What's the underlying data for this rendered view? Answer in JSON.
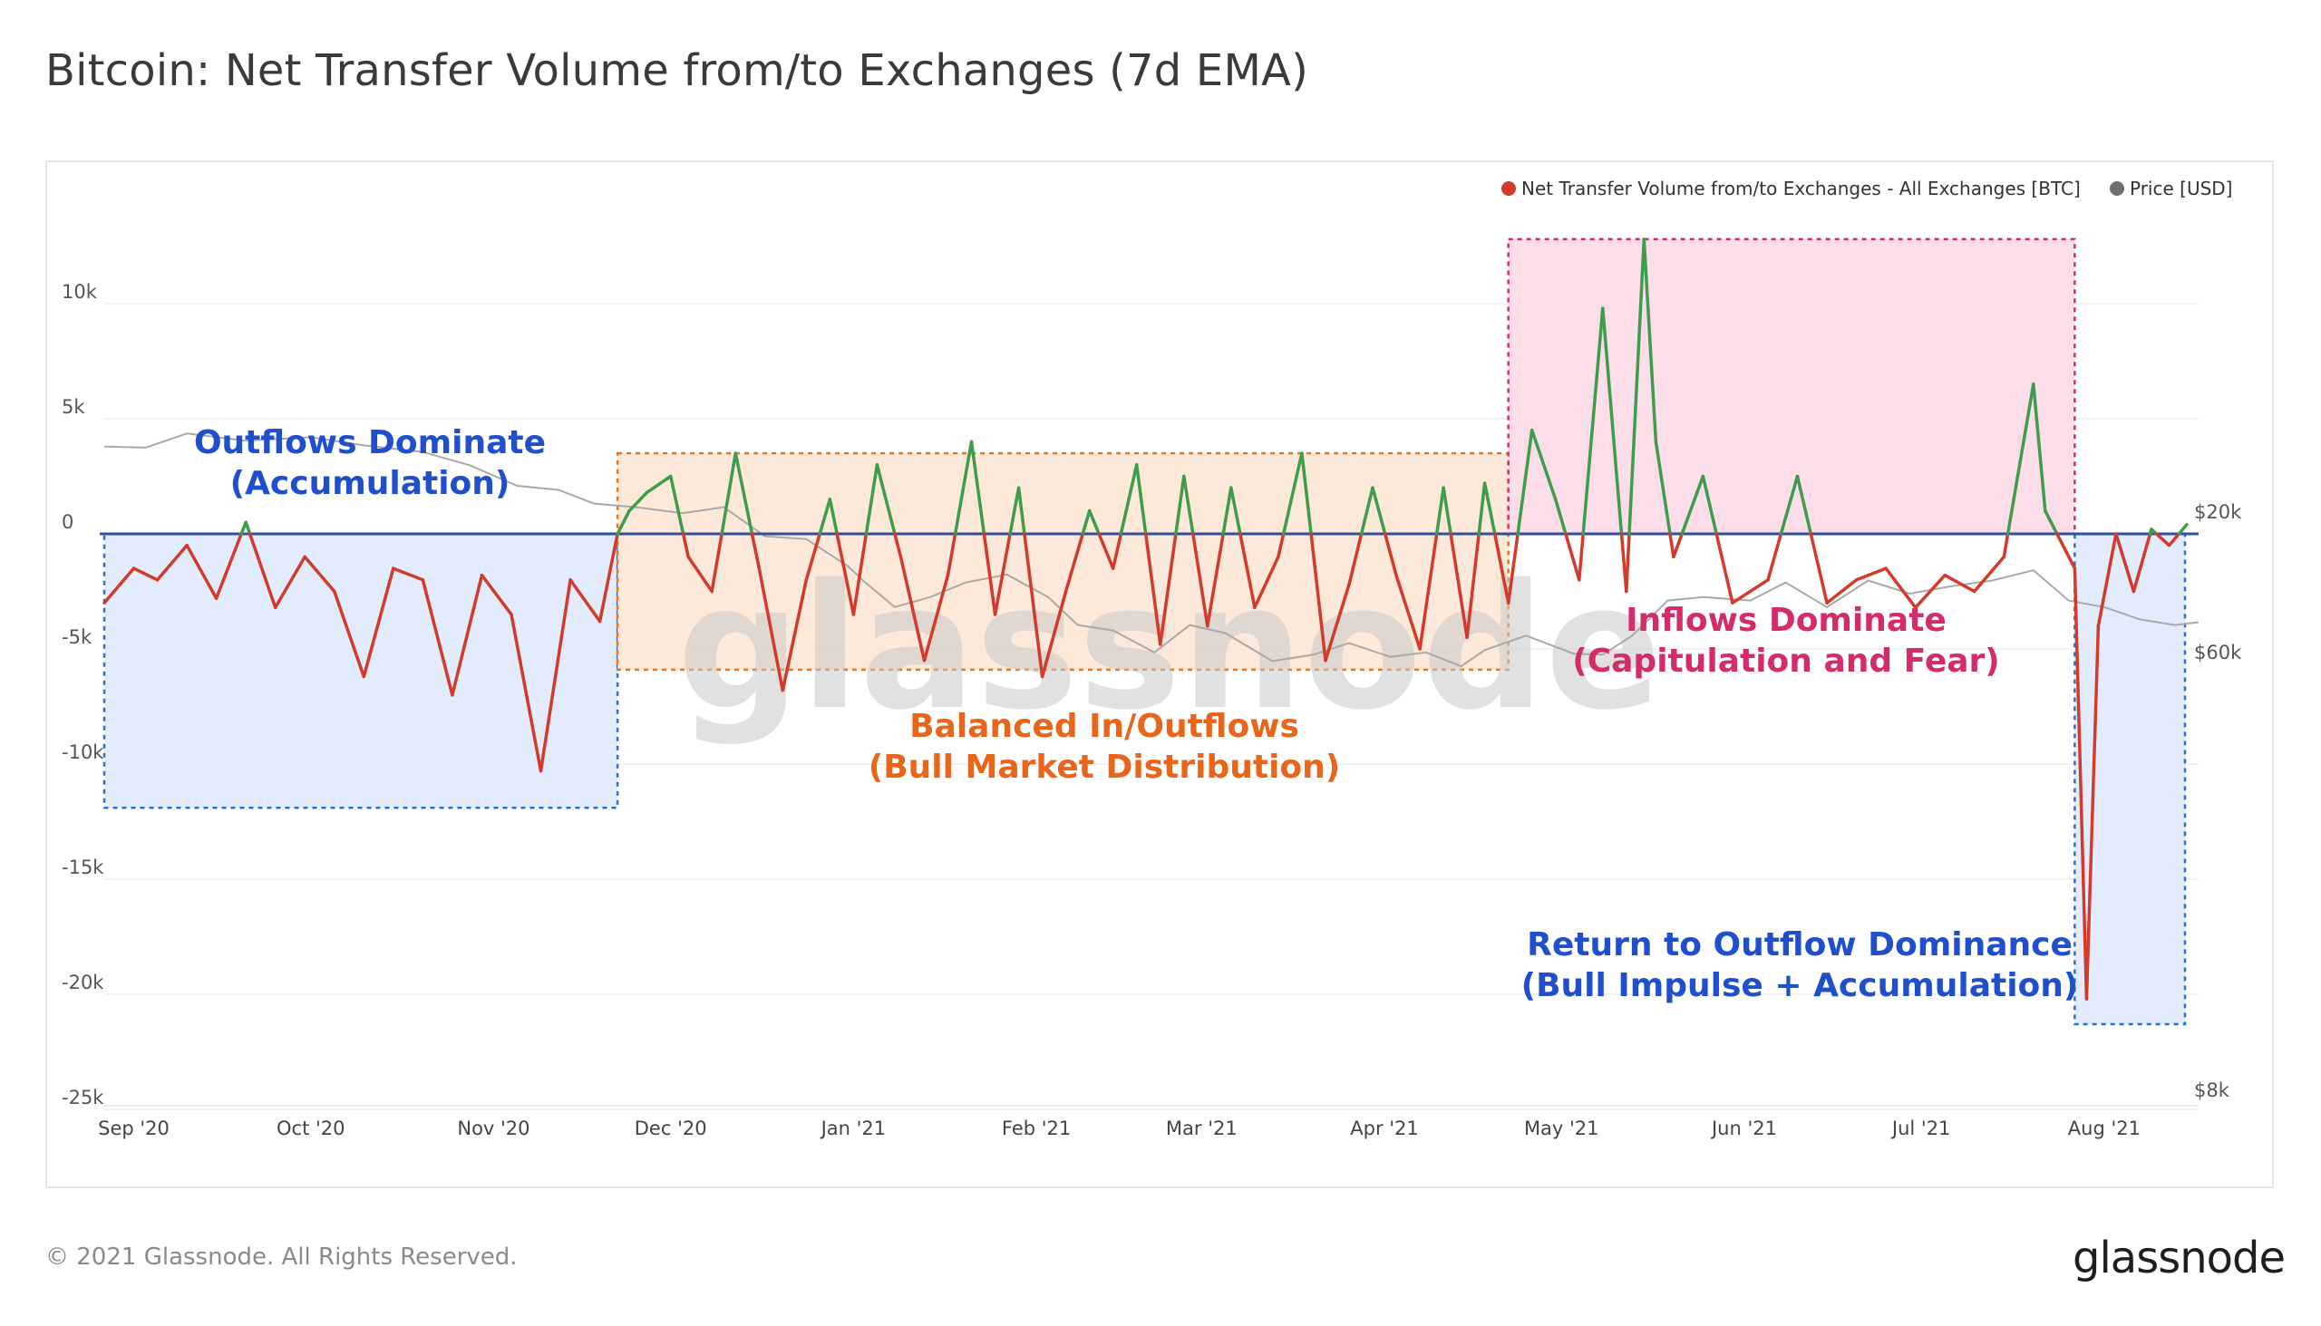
{
  "title": "Bitcoin: Net Transfer Volume from/to Exchanges (7d EMA)",
  "footer": "© 2021 Glassnode. All Rights Reserved.",
  "brand": "glassnode",
  "watermark": "glassnode",
  "colors": {
    "inflow": "#d33a2c",
    "outflow": "#3e9c4a",
    "price": "#a9a9a9",
    "zero_line": "#2f4fa0",
    "zone_outflow": "#2e6fd6",
    "zone_balanced": "#e8741c",
    "zone_inflow": "#d42c6a"
  },
  "legend": [
    {
      "label": "Net Transfer Volume from/to Exchanges - All Exchanges [BTC]",
      "color": "#d33a2c"
    },
    {
      "label": "Price [USD]",
      "color": "#6f6f6f"
    }
  ],
  "annotations": [
    {
      "id": "accumulation",
      "lines": [
        "Outflows Dominate",
        "(Accumulation)"
      ],
      "color": "#1f4fcc"
    },
    {
      "id": "balanced",
      "lines": [
        "Balanced In/Outflows",
        "(Bull Market Distribution)"
      ],
      "color": "#e8651a"
    },
    {
      "id": "inflows",
      "lines": [
        "Inflows Dominate",
        "(Capitulation and Fear)"
      ],
      "color": "#d42c6a"
    },
    {
      "id": "return",
      "lines": [
        "Return to Outflow Dominance",
        "(Bull Impulse + Accumulation)"
      ],
      "color": "#1f4fcc"
    }
  ],
  "chart_data": {
    "type": "line",
    "x_ticks": [
      "Sep '20",
      "Oct '20",
      "Nov '20",
      "Dec '20",
      "Jan '21",
      "Feb '21",
      "Mar '21",
      "Apr '21",
      "May '21",
      "Jun '21",
      "Jul '21",
      "Aug '21"
    ],
    "y_left": {
      "ticks": [
        "10k",
        "5k",
        "0",
        "-5k",
        "-10k",
        "-15k",
        "-20k",
        "-25k"
      ],
      "range": [
        -25000,
        13500
      ],
      "unit": "BTC"
    },
    "y_right": {
      "ticks": [
        "$60k",
        "$20k",
        "$8k"
      ],
      "scale": "log",
      "range": [
        8000,
        75000
      ],
      "unit": "USD"
    },
    "series": [
      {
        "name": "Net Transfer Volume from/to Exchanges - All Exchanges [BTC]",
        "x": [
          "2020-08-27",
          "2020-09-01",
          "2020-09-05",
          "2020-09-10",
          "2020-09-15",
          "2020-09-20",
          "2020-09-25",
          "2020-09-30",
          "2020-10-05",
          "2020-10-10",
          "2020-10-15",
          "2020-10-20",
          "2020-10-25",
          "2020-10-30",
          "2020-11-04",
          "2020-11-09",
          "2020-11-14",
          "2020-11-19",
          "2020-11-22",
          "2020-11-24",
          "2020-11-27",
          "2020-12-01",
          "2020-12-04",
          "2020-12-08",
          "2020-12-12",
          "2020-12-16",
          "2020-12-20",
          "2020-12-24",
          "2020-12-28",
          "2021-01-01",
          "2021-01-05",
          "2021-01-09",
          "2021-01-13",
          "2021-01-17",
          "2021-01-21",
          "2021-01-25",
          "2021-01-29",
          "2021-02-02",
          "2021-02-06",
          "2021-02-10",
          "2021-02-14",
          "2021-02-18",
          "2021-02-22",
          "2021-02-26",
          "2021-03-02",
          "2021-03-06",
          "2021-03-10",
          "2021-03-14",
          "2021-03-18",
          "2021-03-22",
          "2021-03-26",
          "2021-03-30",
          "2021-04-03",
          "2021-04-07",
          "2021-04-11",
          "2021-04-15",
          "2021-04-18",
          "2021-04-22",
          "2021-04-26",
          "2021-04-30",
          "2021-05-04",
          "2021-05-08",
          "2021-05-12",
          "2021-05-15",
          "2021-05-17",
          "2021-05-20",
          "2021-05-25",
          "2021-05-30",
          "2021-06-05",
          "2021-06-10",
          "2021-06-15",
          "2021-06-20",
          "2021-06-25",
          "2021-06-30",
          "2021-07-05",
          "2021-07-10",
          "2021-07-15",
          "2021-07-20",
          "2021-07-22",
          "2021-07-24",
          "2021-07-27",
          "2021-07-29",
          "2021-07-31",
          "2021-08-03",
          "2021-08-06",
          "2021-08-09",
          "2021-08-12",
          "2021-08-15"
        ],
        "y": [
          -3000,
          -1500,
          -2000,
          -500,
          -2800,
          500,
          -3200,
          -1000,
          -2500,
          -6200,
          -1500,
          -2000,
          -7000,
          -1800,
          -3500,
          -10300,
          -2000,
          -3800,
          0,
          1000,
          1800,
          2500,
          -1000,
          -2500,
          3500,
          -1500,
          -6800,
          -2000,
          1500,
          -3500,
          3000,
          -1000,
          -5500,
          -1800,
          4000,
          -3500,
          2000,
          -6200,
          -2500,
          1000,
          -1500,
          3000,
          -4800,
          2500,
          -4000,
          2000,
          -3200,
          -1000,
          3500,
          -5500,
          -2200,
          2000,
          -1800,
          -5000,
          2000,
          -4500,
          2200,
          -3000,
          4500,
          1500,
          -2000,
          9800,
          -2500,
          12800,
          4000,
          -1000,
          2500,
          -3000,
          -2000,
          2500,
          -3000,
          -2000,
          -1500,
          -3200,
          -1800,
          -2500,
          -1000,
          6500,
          1000,
          0,
          -1500,
          -20200,
          -4000,
          0,
          -2500,
          200,
          -500,
          400
        ]
      },
      {
        "name": "Price [USD]",
        "x": [
          "2020-08-27",
          "2020-09-03",
          "2020-09-10",
          "2020-09-20",
          "2020-10-01",
          "2020-10-10",
          "2020-10-20",
          "2020-10-28",
          "2020-11-05",
          "2020-11-12",
          "2020-11-18",
          "2020-11-25",
          "2020-12-03",
          "2020-12-10",
          "2020-12-17",
          "2020-12-24",
          "2020-12-31",
          "2021-01-03",
          "2021-01-08",
          "2021-01-14",
          "2021-01-20",
          "2021-01-27",
          "2021-02-03",
          "2021-02-08",
          "2021-02-14",
          "2021-02-21",
          "2021-02-27",
          "2021-03-05",
          "2021-03-13",
          "2021-03-20",
          "2021-03-26",
          "2021-04-02",
          "2021-04-08",
          "2021-04-14",
          "2021-04-18",
          "2021-04-25",
          "2021-05-03",
          "2021-05-08",
          "2021-05-13",
          "2021-05-19",
          "2021-05-25",
          "2021-06-02",
          "2021-06-08",
          "2021-06-15",
          "2021-06-22",
          "2021-06-29",
          "2021-07-06",
          "2021-07-13",
          "2021-07-20",
          "2021-07-26",
          "2021-08-01",
          "2021-08-07",
          "2021-08-13",
          "2021-08-17"
        ],
        "y": [
          11400,
          11500,
          10300,
          10900,
          10600,
          11300,
          11900,
          13200,
          15500,
          16000,
          17800,
          18300,
          19200,
          18300,
          23000,
          23500,
          29000,
          33000,
          40000,
          37000,
          33000,
          31000,
          37000,
          46000,
          48000,
          57000,
          46000,
          49000,
          61000,
          58000,
          53000,
          59000,
          57000,
          63500,
          56000,
          50000,
          57500,
          58000,
          50000,
          38000,
          37000,
          38000,
          33000,
          40000,
          32500,
          36000,
          34000,
          32500,
          30000,
          38000,
          40000,
          44000,
          46000,
          45000
        ]
      }
    ]
  }
}
